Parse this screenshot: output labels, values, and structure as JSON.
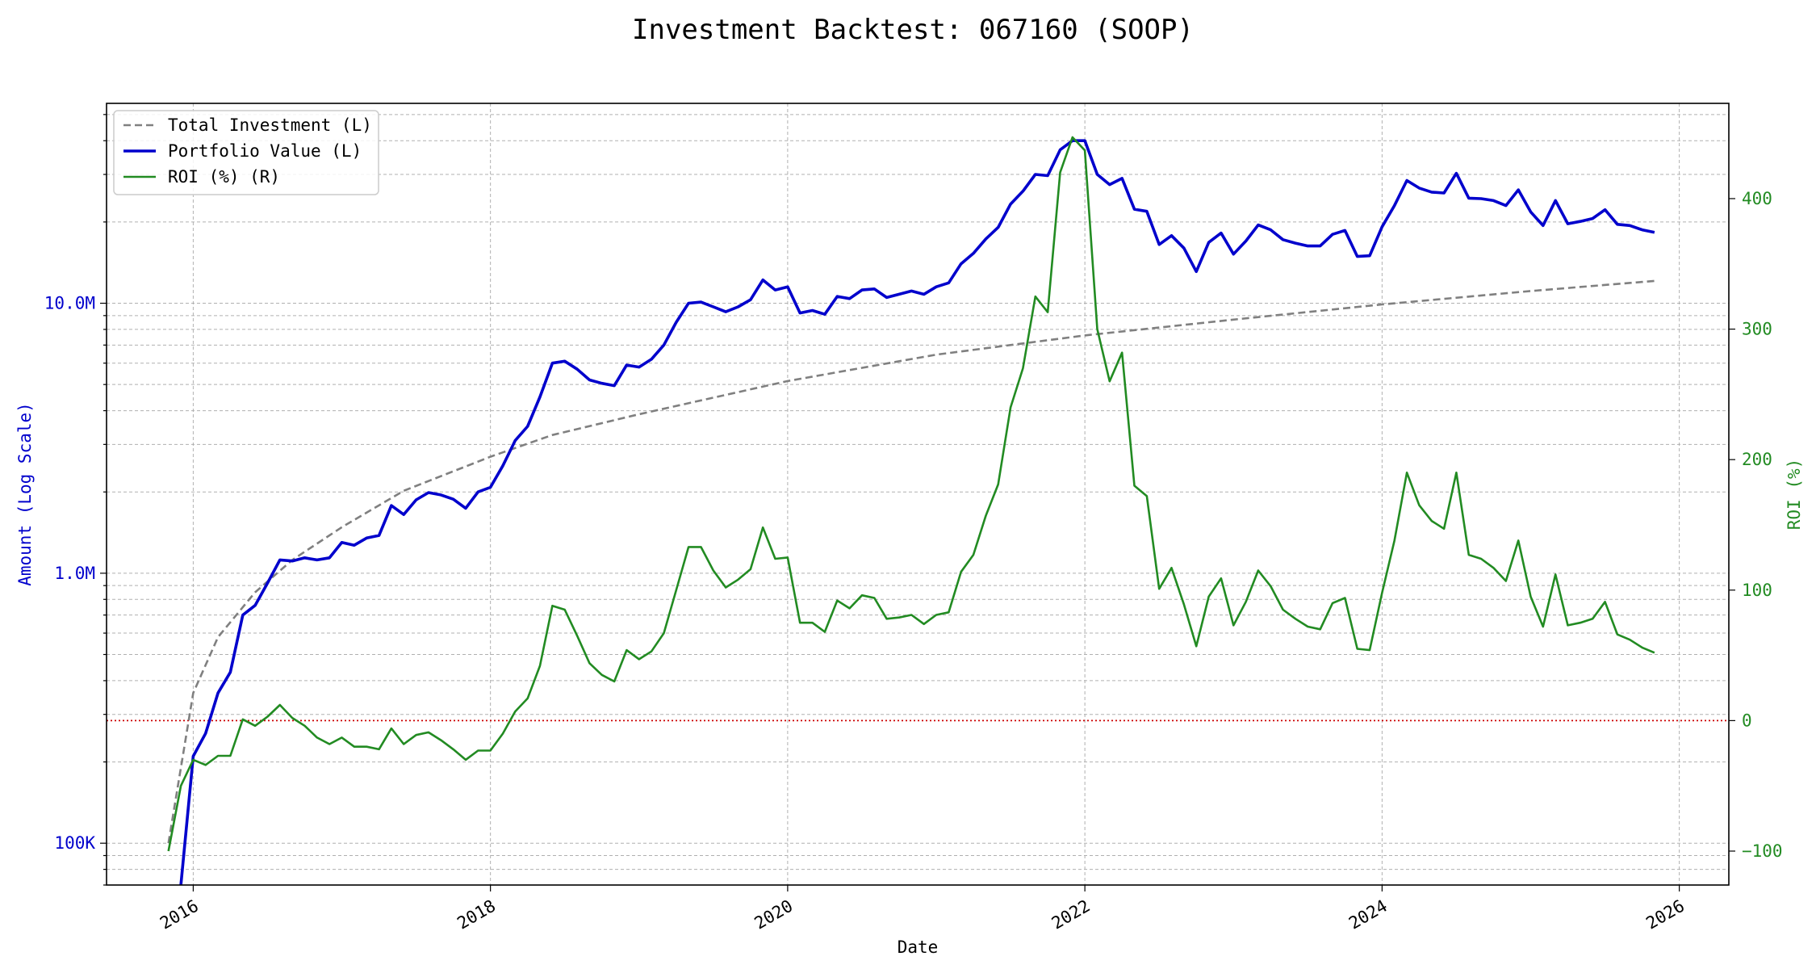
{
  "chart_data": {
    "type": "line",
    "title": "Investment Backtest: 067160 (SOOP)",
    "xlabel": "Date",
    "ylabel_left": "Amount (Log Scale)",
    "ylabel_right": "ROI (%)",
    "left_axis": {
      "scale": "log",
      "range": [
        70000,
        55000000
      ],
      "ticks": [
        {
          "value": 100000,
          "label": "100K"
        },
        {
          "value": 1000000,
          "label": "1.0M"
        },
        {
          "value": 10000000,
          "label": "10.0M"
        }
      ],
      "color": "#0000cc"
    },
    "right_axis": {
      "scale": "linear",
      "range": [
        -126,
        473
      ],
      "ticks": [
        {
          "value": -100,
          "label": "−100"
        },
        {
          "value": 0,
          "label": "0"
        },
        {
          "value": 100,
          "label": "100"
        },
        {
          "value": 200,
          "label": "200"
        },
        {
          "value": 300,
          "label": "300"
        },
        {
          "value": 400,
          "label": "400"
        }
      ],
      "color": "#228b22"
    },
    "x_axis": {
      "range": [
        "2015-06",
        "2026-05"
      ],
      "ticks": [
        {
          "value": "2016-01",
          "label": "2016"
        },
        {
          "value": "2018-01",
          "label": "2018"
        },
        {
          "value": "2020-01",
          "label": "2020"
        },
        {
          "value": "2022-01",
          "label": "2022"
        },
        {
          "value": "2024-01",
          "label": "2024"
        },
        {
          "value": "2026-01",
          "label": "2026"
        }
      ]
    },
    "grid": true,
    "legend_position": "top-left",
    "zero_line": {
      "value": 0,
      "axis": "right",
      "color": "#cc0000",
      "style": "dotted"
    },
    "series": [
      {
        "name": "Total Investment (L)",
        "axis": "left",
        "color": "#808080",
        "style": "dashed",
        "x": [
          "2015-11",
          "2016-01",
          "2016-03",
          "2016-06",
          "2016-09",
          "2017-01",
          "2017-06",
          "2018-01",
          "2018-06",
          "2019-01",
          "2020-01",
          "2021-01",
          "2022-01",
          "2023-01",
          "2024-01",
          "2025-01",
          "2025-11"
        ],
        "values": [
          100000,
          360000,
          580000,
          850000,
          1120000,
          1480000,
          2020000,
          2700000,
          3250000,
          3880000,
          5150000,
          6450000,
          7600000,
          8700000,
          9900000,
          11100000,
          12100000
        ]
      },
      {
        "name": "Portfolio Value (L)",
        "axis": "left",
        "color": "#0000cc",
        "style": "solid",
        "x": [
          "2015-12",
          "2016-01",
          "2016-02",
          "2016-03",
          "2016-04",
          "2016-05",
          "2016-06",
          "2016-07",
          "2016-08",
          "2016-09",
          "2016-10",
          "2016-11",
          "2016-12",
          "2017-01",
          "2017-02",
          "2017-03",
          "2017-04",
          "2017-05",
          "2017-06",
          "2017-07",
          "2017-08",
          "2017-09",
          "2017-10",
          "2017-11",
          "2017-12",
          "2018-01",
          "2018-02",
          "2018-03",
          "2018-04",
          "2018-05",
          "2018-06",
          "2018-07",
          "2018-08",
          "2018-09",
          "2018-10",
          "2018-11",
          "2018-12",
          "2019-01",
          "2019-02",
          "2019-03",
          "2019-04",
          "2019-05",
          "2019-06",
          "2019-07",
          "2019-08",
          "2019-09",
          "2019-10",
          "2019-11",
          "2019-12",
          "2020-01",
          "2020-02",
          "2020-03",
          "2020-04",
          "2020-05",
          "2020-06",
          "2020-07",
          "2020-08",
          "2020-09",
          "2020-10",
          "2020-11",
          "2020-12",
          "2021-01",
          "2021-02",
          "2021-03",
          "2021-04",
          "2021-05",
          "2021-06",
          "2021-07",
          "2021-08",
          "2021-09",
          "2021-10",
          "2021-11",
          "2021-12",
          "2022-01",
          "2022-02",
          "2022-03",
          "2022-04",
          "2022-05",
          "2022-06",
          "2022-07",
          "2022-08",
          "2022-09",
          "2022-10",
          "2022-11",
          "2022-12",
          "2023-01",
          "2023-02",
          "2023-03",
          "2023-04",
          "2023-05",
          "2023-06",
          "2023-07",
          "2023-08",
          "2023-09",
          "2023-10",
          "2023-11",
          "2023-12",
          "2024-01",
          "2024-02",
          "2024-03",
          "2024-04",
          "2024-05",
          "2024-06",
          "2024-07",
          "2024-08",
          "2024-09",
          "2024-10",
          "2024-11",
          "2024-12",
          "2025-01",
          "2025-02",
          "2025-03",
          "2025-04",
          "2025-05",
          "2025-06",
          "2025-07",
          "2025-08",
          "2025-09",
          "2025-10",
          "2025-11"
        ],
        "values": [
          70000,
          210000,
          255000,
          360000,
          430000,
          700000,
          760000,
          920000,
          1120000,
          1110000,
          1140000,
          1120000,
          1140000,
          1300000,
          1270000,
          1350000,
          1380000,
          1780000,
          1650000,
          1870000,
          1990000,
          1950000,
          1880000,
          1740000,
          2000000,
          2080000,
          2500000,
          3100000,
          3500000,
          4500000,
          6000000,
          6100000,
          5700000,
          5200000,
          5050000,
          4950000,
          5900000,
          5800000,
          6200000,
          7000000,
          8500000,
          10000000,
          10100000,
          9700000,
          9300000,
          9700000,
          10300000,
          12200000,
          11200000,
          11500000,
          9200000,
          9400000,
          9100000,
          10600000,
          10400000,
          11200000,
          11300000,
          10500000,
          10800000,
          11100000,
          10800000,
          11500000,
          11900000,
          14000000,
          15300000,
          17300000,
          19100000,
          23300000,
          26000000,
          30000000,
          29700000,
          37000000,
          40000000,
          40000000,
          30000000,
          27500000,
          29000000,
          22300000,
          21900000,
          16500000,
          17800000,
          16000000,
          13100000,
          16800000,
          18200000,
          15200000,
          17000000,
          19500000,
          18700000,
          17200000,
          16700000,
          16300000,
          16300000,
          18000000,
          18600000,
          14900000,
          15000000,
          19200000,
          23000000,
          28500000,
          26700000,
          25800000,
          25600000,
          30300000,
          24500000,
          24400000,
          24000000,
          23000000,
          26300000,
          21800000,
          19400000,
          24000000,
          19700000,
          20100000,
          20600000,
          22200000,
          19600000,
          19400000,
          18700000,
          18300000
        ]
      },
      {
        "name": "ROI (%) (R)",
        "axis": "right",
        "color": "#228b22",
        "style": "solid",
        "x": [
          "2015-11",
          "2015-12",
          "2016-01",
          "2016-02",
          "2016-03",
          "2016-04",
          "2016-05",
          "2016-06",
          "2016-07",
          "2016-08",
          "2016-09",
          "2016-10",
          "2016-11",
          "2016-12",
          "2017-01",
          "2017-02",
          "2017-03",
          "2017-04",
          "2017-05",
          "2017-06",
          "2017-07",
          "2017-08",
          "2017-09",
          "2017-10",
          "2017-11",
          "2017-12",
          "2018-01",
          "2018-02",
          "2018-03",
          "2018-04",
          "2018-05",
          "2018-06",
          "2018-07",
          "2018-08",
          "2018-09",
          "2018-10",
          "2018-11",
          "2018-12",
          "2019-01",
          "2019-02",
          "2019-03",
          "2019-04",
          "2019-05",
          "2019-06",
          "2019-07",
          "2019-08",
          "2019-09",
          "2019-10",
          "2019-11",
          "2019-12",
          "2020-01",
          "2020-02",
          "2020-03",
          "2020-04",
          "2020-05",
          "2020-06",
          "2020-07",
          "2020-08",
          "2020-09",
          "2020-10",
          "2020-11",
          "2020-12",
          "2021-01",
          "2021-02",
          "2021-03",
          "2021-04",
          "2021-05",
          "2021-06",
          "2021-07",
          "2021-08",
          "2021-09",
          "2021-10",
          "2021-11",
          "2021-12",
          "2022-01",
          "2022-02",
          "2022-03",
          "2022-04",
          "2022-05",
          "2022-06",
          "2022-07",
          "2022-08",
          "2022-09",
          "2022-10",
          "2022-11",
          "2022-12",
          "2023-01",
          "2023-02",
          "2023-03",
          "2023-04",
          "2023-05",
          "2023-06",
          "2023-07",
          "2023-08",
          "2023-09",
          "2023-10",
          "2023-11",
          "2023-12",
          "2024-01",
          "2024-02",
          "2024-03",
          "2024-04",
          "2024-05",
          "2024-06",
          "2024-07",
          "2024-08",
          "2024-09",
          "2024-10",
          "2024-11",
          "2024-12",
          "2025-01",
          "2025-02",
          "2025-03",
          "2025-04",
          "2025-05",
          "2025-06",
          "2025-07",
          "2025-08",
          "2025-09",
          "2025-10",
          "2025-11"
        ],
        "values": [
          -100,
          -50,
          -30,
          -34,
          -27,
          -27,
          1,
          -4,
          3,
          12,
          2,
          -4,
          -13,
          -18,
          -13,
          -20,
          -20,
          -22,
          -6,
          -18,
          -11,
          -9,
          -15,
          -22,
          -30,
          -23,
          -23,
          -10,
          7,
          17,
          42,
          88,
          85,
          65,
          44,
          35,
          30,
          54,
          47,
          53,
          67,
          100,
          133,
          133,
          115,
          102,
          108,
          116,
          148,
          124,
          125,
          75,
          75,
          68,
          92,
          86,
          96,
          94,
          78,
          79,
          81,
          74,
          81,
          83,
          114,
          127,
          157,
          181,
          240,
          270,
          325,
          313,
          420,
          447,
          437,
          300,
          260,
          282,
          180,
          172,
          101,
          117,
          89,
          57,
          95,
          109,
          73,
          91,
          115,
          103,
          85,
          78,
          72,
          70,
          90,
          94,
          55,
          54,
          98,
          138,
          190,
          165,
          153,
          147,
          190,
          127,
          124,
          117,
          107,
          138,
          95,
          72,
          112,
          73,
          75,
          78,
          91,
          66,
          62,
          56,
          52
        ]
      }
    ]
  }
}
